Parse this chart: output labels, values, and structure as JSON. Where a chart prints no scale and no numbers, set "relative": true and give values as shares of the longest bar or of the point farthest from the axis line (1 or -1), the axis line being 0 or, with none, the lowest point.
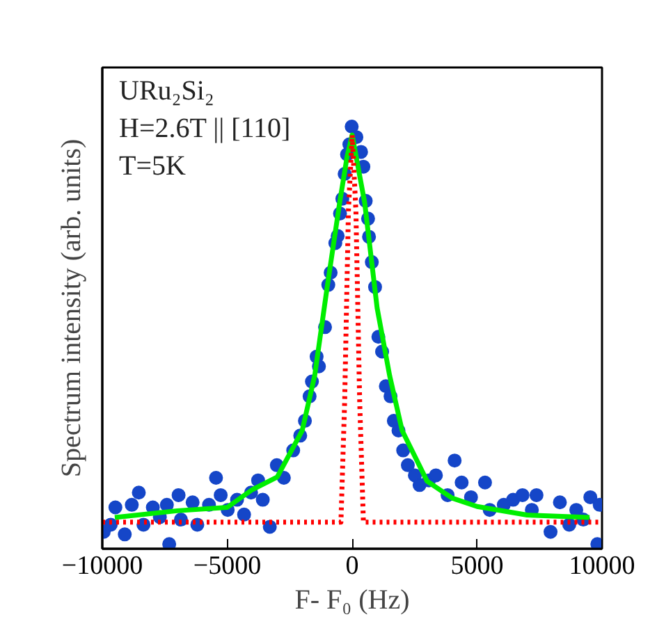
{
  "chart_data": {
    "type": "scatter",
    "relative": true,
    "xlabel": "F- F₀ (Hz)",
    "ylabel": "Spectrum intensity (arb. units)",
    "annotations": [
      "URu₂Si₂",
      "H=2.6T || [110]",
      "T=5K"
    ],
    "xlim": [
      -10000,
      10000
    ],
    "xticks": [
      -10000,
      -5000,
      0,
      5000,
      10000
    ],
    "grid": false,
    "series": [
      {
        "marker": "circle",
        "color": "#1546c8",
        "x": [
          -9944,
          -9663,
          -9476,
          -9101,
          -8820,
          -8539,
          -8352,
          -7978,
          -7697,
          -7416,
          -7322,
          -6947,
          -6854,
          -6386,
          -6198,
          -5730,
          -5449,
          -5262,
          -4981,
          -4607,
          -4326,
          -4045,
          -3764,
          -3577,
          -3296,
          -3015,
          -2734,
          -2360,
          -2079,
          -1891,
          -1704,
          -1610,
          -1423,
          -1330,
          -1086,
          -955,
          -861,
          -674,
          -580,
          -487,
          -393,
          -300,
          -206,
          -112,
          -19,
          169,
          356,
          449,
          543,
          637,
          674,
          787,
          917,
          1049,
          1198,
          1348,
          1536,
          1667,
          1854,
          2041,
          2228,
          2509,
          2697,
          3071,
          3352,
          3820,
          4101,
          4382,
          4756,
          5318,
          5505,
          6067,
          6442,
          6817,
          7191,
          7378,
          7940,
          8314,
          8689,
          8970,
          9251,
          9532,
          9813,
          9906
        ],
        "values": [
          0.04,
          0.057,
          0.098,
          0.034,
          0.104,
          0.133,
          0.057,
          0.098,
          0.075,
          0.104,
          0.011,
          0.127,
          0.069,
          0.11,
          0.057,
          0.104,
          0.168,
          0.127,
          0.092,
          0.116,
          0.081,
          0.133,
          0.162,
          0.116,
          0.052,
          0.198,
          0.168,
          0.233,
          0.268,
          0.303,
          0.361,
          0.396,
          0.455,
          0.432,
          0.525,
          0.625,
          0.654,
          0.724,
          0.741,
          0.794,
          0.829,
          0.888,
          0.934,
          0.958,
          1,
          0.975,
          0.94,
          0.905,
          0.824,
          0.782,
          0.739,
          0.679,
          0.62,
          0.502,
          0.467,
          0.385,
          0.361,
          0.303,
          0.28,
          0.233,
          0.198,
          0.174,
          0.151,
          0.162,
          0.174,
          0.127,
          0.209,
          0.157,
          0.122,
          0.157,
          0.092,
          0.104,
          0.116,
          0.127,
          0.092,
          0.127,
          0.04,
          0.11,
          0.057,
          0.092,
          0.069,
          0.122,
          0.011,
          0.104
        ]
      },
      {
        "type": "line",
        "line_style": "solid",
        "color": "#00ee00",
        "x": [
          -9500,
          -7000,
          -5000,
          -4000,
          -3000,
          -2000,
          -1500,
          -1000,
          -500,
          -200,
          0,
          500,
          1000,
          1500,
          2000,
          3000,
          4000,
          5000,
          7000,
          9500
        ],
        "values": [
          0.074,
          0.09,
          0.098,
          0.14,
          0.17,
          0.28,
          0.41,
          0.62,
          0.82,
          0.93,
          0.98,
          0.82,
          0.57,
          0.41,
          0.28,
          0.16,
          0.12,
          0.1,
          0.08,
          0.074
        ]
      },
      {
        "type": "line",
        "line_style": "dotted",
        "color": "#ff0000",
        "x": [
          -10000,
          -450,
          -300,
          -150,
          0,
          150,
          300,
          450,
          10000
        ],
        "values": [
          0.063,
          0.063,
          0.35,
          0.8,
          0.98,
          0.8,
          0.35,
          0.063,
          0.063
        ]
      }
    ]
  }
}
